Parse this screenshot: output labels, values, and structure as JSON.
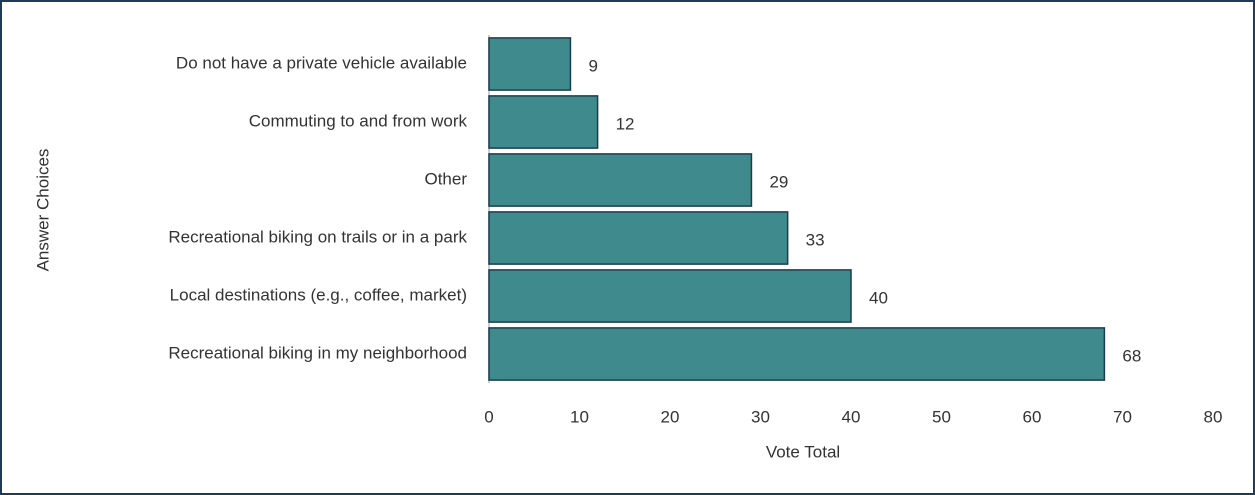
{
  "chart_data": {
    "type": "bar",
    "orientation": "horizontal",
    "categories": [
      "Do not have a private vehicle available",
      "Commuting to and from work",
      "Other",
      "Recreational biking on trails or in a park",
      "Local destinations (e.g., coffee, market)",
      "Recreational biking in my neighborhood"
    ],
    "values": [
      9,
      12,
      29,
      33,
      40,
      68
    ],
    "color": "#3f8a8c",
    "xlabel": "Vote Total",
    "ylabel": "Answer Choices",
    "xlim": [
      0,
      80
    ],
    "xticks": [
      0,
      10,
      20,
      30,
      40,
      50,
      60,
      70,
      80
    ],
    "grid": false
  }
}
